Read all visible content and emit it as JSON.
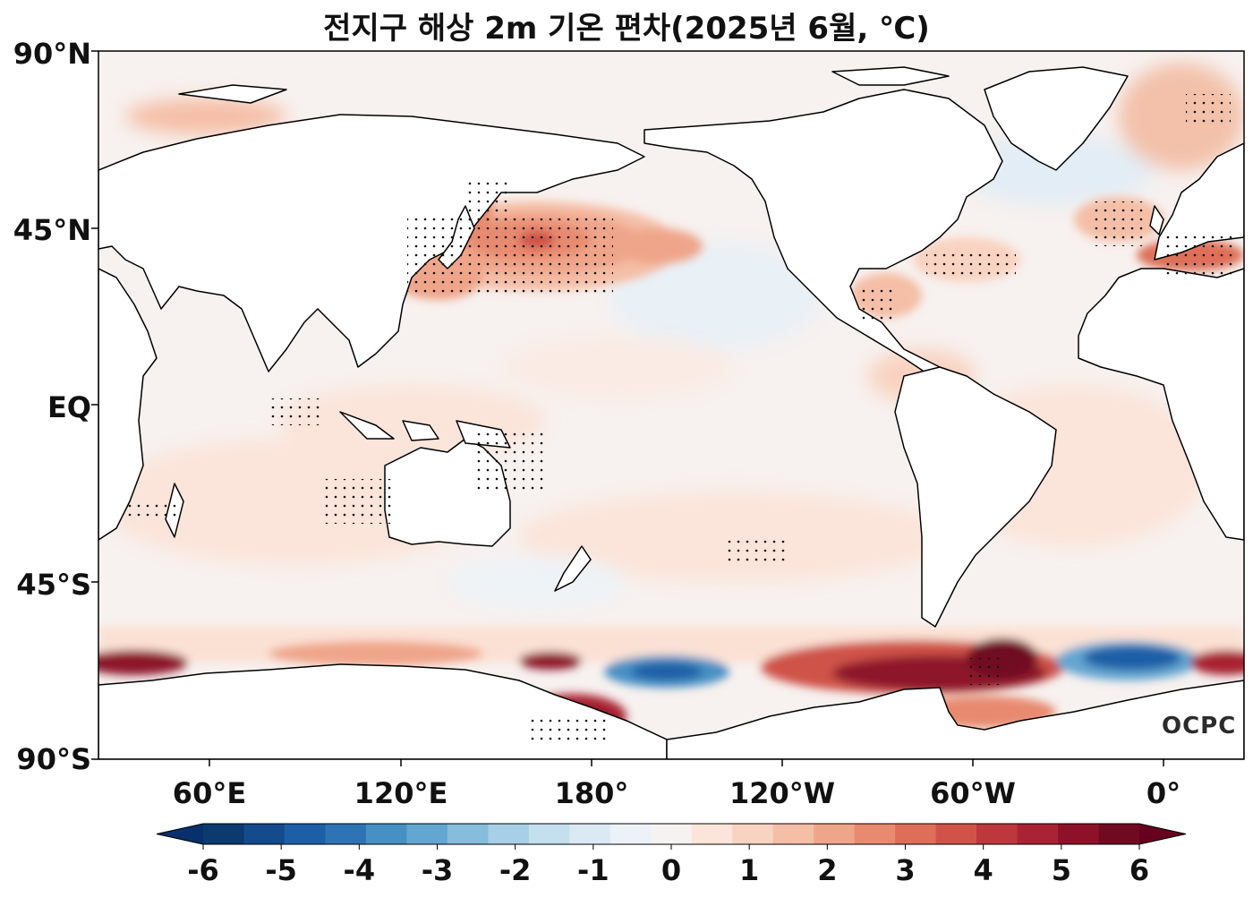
{
  "title": "전지구 해상 2m 기온 편차(2025년 6월, ℃)",
  "logo": "OCPC",
  "y_axis": {
    "labels": [
      "90°N",
      "45°N",
      "EQ",
      "45°S",
      "90°S"
    ],
    "values": [
      90,
      45,
      0,
      -45,
      -90
    ]
  },
  "x_axis": {
    "labels": [
      "60°E",
      "120°E",
      "180°",
      "120°W",
      "60°W",
      "0°"
    ],
    "lon_values": [
      60,
      120,
      180,
      240,
      300,
      360
    ],
    "lon_range": [
      25,
      385
    ]
  },
  "colorbar": {
    "labels": [
      "-6",
      "-5",
      "-4",
      "-3",
      "-2",
      "-1",
      "0",
      "1",
      "2",
      "3",
      "4",
      "5",
      "6"
    ],
    "levels": [
      -6,
      -5.5,
      -5,
      -4.5,
      -4,
      -3.5,
      -3,
      -2.5,
      -2,
      -1.5,
      -1,
      -0.5,
      0,
      0.5,
      1,
      1.5,
      2,
      2.5,
      3,
      3.5,
      4,
      4.5,
      5,
      5.5,
      6
    ],
    "colors": [
      "#0b3a6e",
      "#134b8c",
      "#1d5fa6",
      "#2e74b5",
      "#4690c4",
      "#63a6d1",
      "#86bcdc",
      "#a7cfe6",
      "#c4dfee",
      "#dbe9f3",
      "#ecf2f7",
      "#f6f2f1",
      "#fbe5da",
      "#f9d3c1",
      "#f5bea6",
      "#efa58a",
      "#e88a6f",
      "#dd6f58",
      "#cf5349",
      "#bd383d",
      "#a82333",
      "#8d1229",
      "#700a20"
    ],
    "extend": "both"
  },
  "stippling_meaning": "",
  "map_data": {
    "type": "filled-contour map",
    "projection": "equirectangular, centered on Pacific",
    "variable": "2m air temperature anomaly over ocean",
    "highlights": [
      {
        "region": "North Pacific (~40-48°N, 150°E-160°W)",
        "anomaly": 3
      },
      {
        "region": "Mediterranean",
        "anomaly": 3
      },
      {
        "region": "Antarctic coast near Ross/Amundsen Sea",
        "anomaly": 6
      },
      {
        "region": "Weddell Sea sector",
        "anomaly": -5
      },
      {
        "region": "Southern Ocean ~150°W",
        "anomaly": -4
      }
    ]
  }
}
